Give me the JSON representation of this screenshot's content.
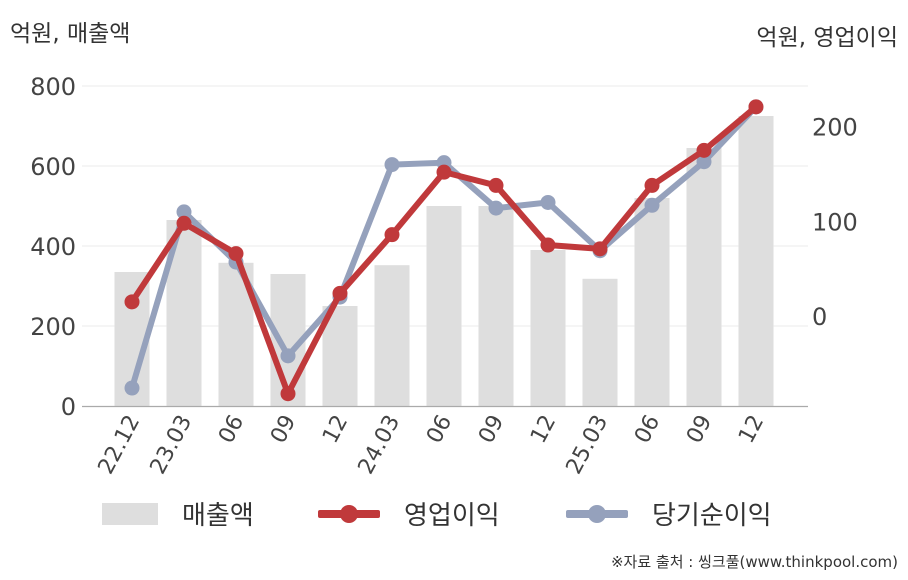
{
  "chart_data": {
    "type": "bar+line",
    "categories": [
      "22.12",
      "23.03",
      "06",
      "09",
      "12",
      "24.03",
      "06",
      "09",
      "12",
      "25.03",
      "06",
      "09",
      "12"
    ],
    "left_axis": {
      "unit": "억원, 매출액",
      "ticks": [
        "800",
        "600",
        "400",
        "200",
        "0"
      ],
      "ylim": [
        0,
        800
      ]
    },
    "right_axis": {
      "unit": "억원, 영업이익",
      "ticks": [
        "200",
        "100",
        "0"
      ],
      "ylim": [
        -95,
        243
      ]
    },
    "series": [
      {
        "name": "매출액",
        "kind": "bar",
        "axis": "left",
        "color": "#dedede",
        "values": [
          335,
          465,
          358,
          330,
          250,
          352,
          500,
          500,
          390,
          318,
          520,
          645,
          725
        ]
      },
      {
        "name": "영업이익",
        "kind": "line",
        "axis": "right",
        "color": "#c0393b",
        "values": [
          15,
          98,
          66,
          -82,
          24,
          86,
          152,
          138,
          75,
          71,
          138,
          175,
          221
        ]
      },
      {
        "name": "당기순이익",
        "kind": "line",
        "axis": "right",
        "color": "#95a1bc",
        "values": [
          -76,
          110,
          57,
          -42,
          20,
          160,
          162,
          114,
          120,
          69,
          117,
          163,
          221
        ]
      }
    ],
    "grid": true,
    "legend_position": "bottom"
  },
  "source": "※자료 출처 : 씽크풀(www.thinkpool.com)"
}
